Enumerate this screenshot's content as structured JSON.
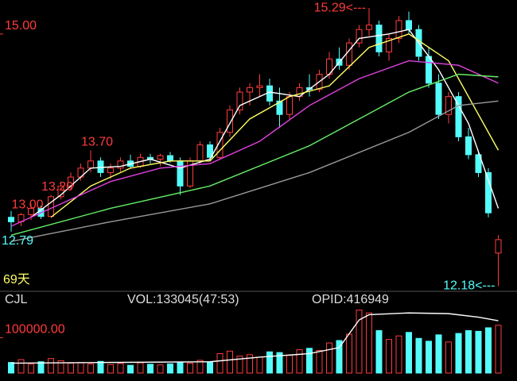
{
  "chart_data": {
    "type": "candlestick",
    "up_color": "#ff3b3b",
    "down_color": "#54fcfc",
    "open": [
      12.95,
      12.9,
      12.98,
      13.05,
      12.96,
      13.18,
      13.3,
      13.4,
      13.5,
      13.58,
      13.45,
      13.5,
      13.58,
      13.52,
      13.62,
      13.6,
      13.64,
      13.58,
      13.3,
      13.58,
      13.76,
      13.62,
      13.9,
      14.15,
      14.35,
      14.4,
      14.42,
      14.25,
      14.1,
      14.3,
      14.4,
      14.38,
      14.55,
      14.72,
      14.65,
      14.9,
      15.05,
      15.1,
      14.8,
      14.95,
      15.15,
      15.05,
      14.75,
      14.45,
      14.1,
      14.3,
      13.85,
      13.65,
      13.45,
      12.55
    ],
    "high": [
      13.02,
      13.0,
      13.1,
      13.08,
      13.2,
      13.35,
      13.45,
      13.55,
      13.7,
      13.62,
      13.55,
      13.62,
      13.65,
      13.66,
      13.66,
      13.66,
      13.68,
      13.62,
      13.62,
      13.8,
      13.8,
      13.95,
      14.2,
      14.4,
      14.45,
      14.55,
      14.5,
      14.4,
      14.35,
      14.45,
      14.55,
      14.6,
      14.8,
      14.85,
      14.95,
      15.1,
      15.29,
      15.15,
      15.0,
      15.2,
      15.25,
      15.1,
      14.85,
      14.55,
      14.35,
      14.35,
      13.95,
      13.7,
      13.5,
      12.75
    ],
    "low": [
      12.79,
      12.85,
      12.92,
      12.93,
      12.95,
      13.15,
      13.25,
      13.36,
      13.45,
      13.4,
      13.38,
      13.46,
      13.5,
      13.5,
      13.55,
      13.52,
      13.56,
      13.2,
      13.28,
      13.55,
      13.58,
      13.6,
      13.85,
      14.1,
      14.2,
      14.3,
      14.2,
      13.95,
      14.05,
      14.25,
      14.3,
      14.35,
      14.5,
      14.6,
      14.6,
      14.85,
      14.98,
      14.75,
      14.7,
      14.9,
      15.0,
      14.7,
      14.4,
      14.05,
      14.0,
      13.8,
      13.6,
      13.4,
      12.95,
      12.18
    ],
    "close": [
      12.9,
      12.98,
      13.05,
      12.96,
      13.18,
      13.3,
      13.4,
      13.5,
      13.58,
      13.45,
      13.5,
      13.58,
      13.52,
      13.62,
      13.6,
      13.64,
      13.58,
      13.3,
      13.58,
      13.76,
      13.62,
      13.9,
      14.15,
      14.35,
      14.4,
      14.42,
      14.25,
      14.1,
      14.3,
      14.4,
      14.38,
      14.55,
      14.72,
      14.65,
      14.9,
      15.05,
      15.1,
      14.8,
      14.95,
      15.15,
      15.05,
      14.75,
      14.45,
      14.1,
      14.3,
      13.85,
      13.65,
      13.45,
      13.0,
      12.7
    ],
    "ylim": [
      12.14,
      15.38
    ],
    "yticks": [
      {
        "value": 15,
        "label": "15.00"
      }
    ],
    "days_label": "69天",
    "annotations": [
      {
        "label": "15.29<---",
        "value": 15.29
      },
      {
        "label": "13.70",
        "value": 13.7
      },
      {
        "label": "13.00",
        "value": 13.0
      },
      {
        "label": "13.20",
        "value": 13.2
      },
      {
        "label": "12.79",
        "value": 12.79
      },
      {
        "label": "12.18<---",
        "value": 12.18
      }
    ],
    "moving_averages": [
      {
        "color": "#ffffff",
        "x": [
          2,
          5,
          8,
          11,
          14,
          17,
          20,
          23,
          26,
          29,
          32,
          35,
          38,
          40,
          43,
          46,
          49
        ],
        "values": [
          12.95,
          13.2,
          13.5,
          13.52,
          13.6,
          13.5,
          13.6,
          14.2,
          14.35,
          14.3,
          14.55,
          14.95,
          15.0,
          15.05,
          14.6,
          14.0,
          13.05
        ]
      },
      {
        "color": "#ffff66",
        "x": [
          4,
          8,
          12,
          16,
          20,
          24,
          28,
          32,
          36,
          40,
          44,
          49
        ],
        "values": [
          12.95,
          13.3,
          13.5,
          13.58,
          13.58,
          14.05,
          14.3,
          14.42,
          14.85,
          15.0,
          14.7,
          13.7
        ]
      },
      {
        "color": "#e040e0",
        "x": [
          0,
          5,
          10,
          15,
          20,
          25,
          30,
          35,
          40,
          45,
          49
        ],
        "values": [
          12.85,
          13.1,
          13.35,
          13.5,
          13.55,
          13.8,
          14.2,
          14.5,
          14.7,
          14.65,
          14.45
        ]
      },
      {
        "color": "#66ee66",
        "x": [
          0,
          10,
          20,
          30,
          35,
          40,
          45,
          49
        ],
        "values": [
          12.75,
          13.05,
          13.3,
          13.75,
          14.05,
          14.35,
          14.55,
          14.52
        ]
      },
      {
        "color": "#999999",
        "x": [
          0,
          10,
          20,
          30,
          40,
          45,
          49
        ],
        "values": [
          12.68,
          12.9,
          13.1,
          13.45,
          13.9,
          14.2,
          14.25
        ]
      }
    ],
    "volume": {
      "title": "CJL",
      "summary": "VOL:133045(47:53)",
      "extra": "OPID:416949",
      "values": [
        30000,
        38000,
        25000,
        32000,
        41000,
        35000,
        28000,
        30000,
        26000,
        33000,
        24000,
        27000,
        22000,
        29000,
        25000,
        23000,
        26000,
        31000,
        28000,
        36000,
        30000,
        55000,
        62000,
        48000,
        52000,
        45000,
        60000,
        58000,
        50000,
        66000,
        70000,
        64000,
        85000,
        92000,
        110000,
        178000,
        170000,
        120000,
        95000,
        105000,
        115000,
        98000,
        90000,
        108000,
        88000,
        112000,
        120000,
        118000,
        128000,
        135000
      ],
      "ylim": [
        0,
        184000
      ],
      "yticks": [
        {
          "value": 100000,
          "label": "100000.00"
        }
      ],
      "average": {
        "color": "#ffffff",
        "x": [
          0,
          10,
          20,
          25,
          30,
          33,
          35,
          36,
          40,
          44,
          47,
          49
        ],
        "values": [
          28000,
          30000,
          32000,
          45000,
          55000,
          72000,
          150000,
          165000,
          170000,
          168000,
          158000,
          148000
        ]
      }
    }
  }
}
